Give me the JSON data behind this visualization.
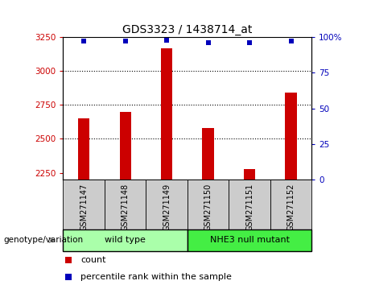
{
  "title": "GDS3323 / 1438714_at",
  "samples": [
    "GSM271147",
    "GSM271148",
    "GSM271149",
    "GSM271150",
    "GSM271151",
    "GSM271152"
  ],
  "counts": [
    2650,
    2700,
    3170,
    2580,
    2280,
    2840
  ],
  "percentile_ranks": [
    97,
    97,
    98,
    96,
    96,
    97
  ],
  "ylim_left": [
    2200,
    3250
  ],
  "ylim_right": [
    0,
    100
  ],
  "yticks_left": [
    2250,
    2500,
    2750,
    3000,
    3250
  ],
  "yticks_right": [
    0,
    25,
    50,
    75,
    100
  ],
  "ytick_labels_right": [
    "0",
    "25",
    "50",
    "75",
    "100%"
  ],
  "bar_color": "#cc0000",
  "dot_color": "#0000bb",
  "grid_color": "#000000",
  "groups": [
    {
      "label": "wild type",
      "start": 0,
      "end": 3,
      "color": "#aaffaa"
    },
    {
      "label": "NHE3 null mutant",
      "start": 3,
      "end": 6,
      "color": "#44ee44"
    }
  ],
  "group_label": "genotype/variation",
  "legend_count_label": "count",
  "legend_percentile_label": "percentile rank within the sample",
  "bar_width": 0.5,
  "tick_label_color_left": "#cc0000",
  "tick_label_color_right": "#0000bb",
  "background_label": "#cccccc"
}
